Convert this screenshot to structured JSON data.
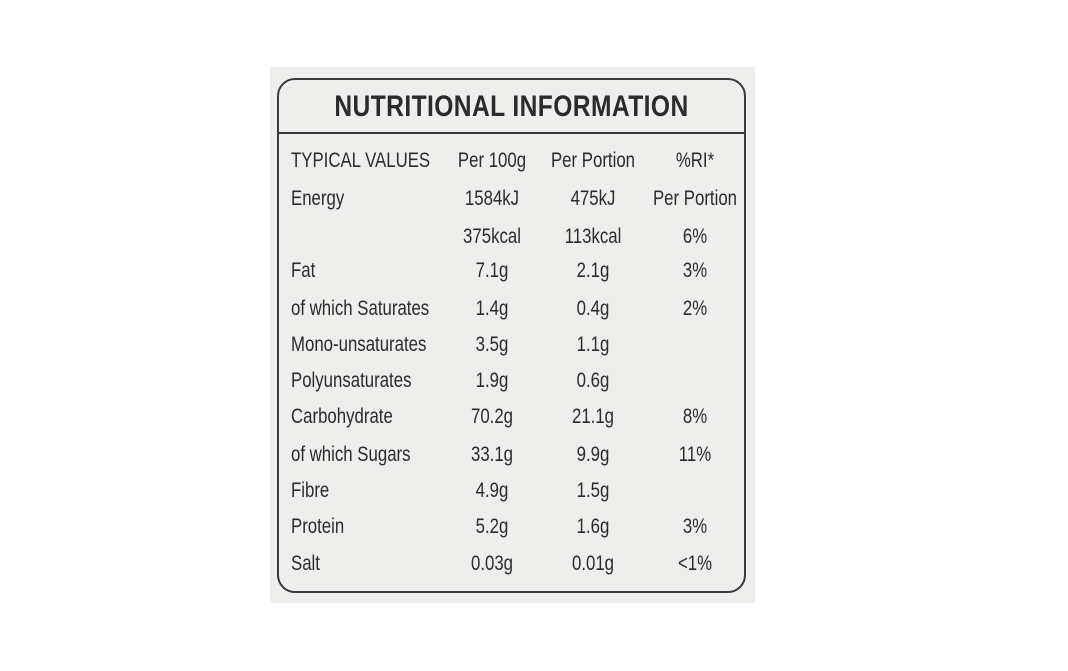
{
  "header": {
    "title": "NUTRITIONAL INFORMATION"
  },
  "table": {
    "header": [
      "TYPICAL VALUES",
      "Per 100g",
      "Per Portion",
      "%RI*"
    ],
    "rows": [
      [
        "Energy",
        "1584kJ",
        "475kJ",
        "Per Portion"
      ],
      [
        null,
        "375kcal",
        "113kcal",
        "6%"
      ],
      [
        "Fat",
        "7.1g",
        "2.1g",
        "3%"
      ],
      [
        "of which Saturates",
        "1.4g",
        "0.4g",
        "2%"
      ],
      [
        "Mono-unsaturates",
        "3.5g",
        "1.1g",
        null
      ],
      [
        "Polyunsaturates",
        "1.9g",
        "0.6g",
        null
      ],
      [
        "Carbohydrate",
        "70.2g",
        "21.1g",
        "8%"
      ],
      [
        "of which Sugars",
        "33.1g",
        "9.9g",
        "11%"
      ],
      [
        "Fibre",
        "4.9g",
        "1.5g",
        null
      ],
      [
        "Protein",
        "5.2g",
        "1.6g",
        "3%"
      ],
      [
        "Salt",
        "0.03g",
        "0.01g",
        "<1%"
      ]
    ]
  }
}
